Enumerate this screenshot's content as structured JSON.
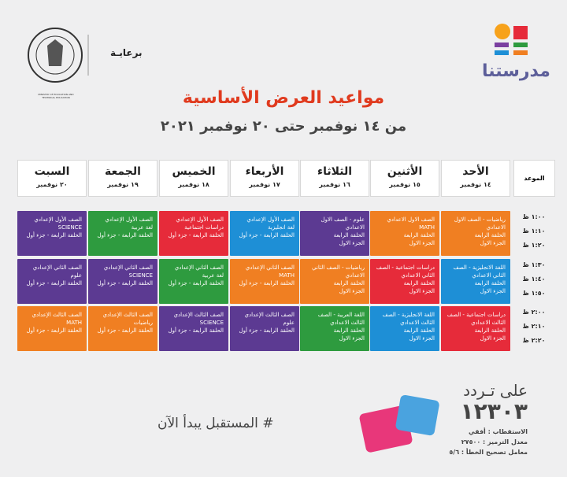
{
  "header": {
    "sponsor": "برعايـة",
    "logo": "مدرستنا",
    "ministry": "MINISTRY OF EDUCATION AND TECHNICAL EDUCATION"
  },
  "title": "مواعيد العرض الأساسية",
  "subtitle": "من ١٤ نوفمبر حتى ٢٠ نوفمبر ٢٠٢١",
  "table": {
    "time_header": "الموعد",
    "days": [
      {
        "name": "الأحد",
        "date": "١٤ نوفمبر"
      },
      {
        "name": "الأثنين",
        "date": "١٥ نوفمبر"
      },
      {
        "name": "الثلاثاء",
        "date": "١٦ نوفمبر"
      },
      {
        "name": "الأربعاء",
        "date": "١٧ نوفمبر"
      },
      {
        "name": "الخميس",
        "date": "١٨ نوفمبر"
      },
      {
        "name": "الجمعة",
        "date": "١٩ نوفمبر"
      },
      {
        "name": "السبت",
        "date": "٢٠ نوفمبر"
      }
    ],
    "times": [
      "١:٠٠ ظ",
      "١:١٠ ظ",
      "١:٢٠ ظ",
      "١:٣٠ ظ",
      "١:٤٠ ظ",
      "١:٥٠ ظ",
      "٢:٠٠ ظ",
      "٢:١٠ ظ",
      "٢:٢٠ ظ"
    ],
    "blocks": [
      [
        {
          "color": "#f07f22",
          "lines": [
            "رياضيات - الصف الاول",
            "الاعدادي",
            "الحلقة الرابعة",
            "الجزء الاول"
          ]
        },
        {
          "color": "#f07f22",
          "lines": [
            "الصف الاول الاعدادي",
            "MATH",
            "الحلقة الرابعة",
            "الجزء الاول"
          ]
        },
        {
          "color": "#5c3a92",
          "lines": [
            "علوم - الصف الاول",
            "الاعدادي",
            "الحلقة الرابعة",
            "الجزء الاول"
          ]
        },
        {
          "color": "#1e8fd6",
          "lines": [
            "الصف الأول الإعدادي",
            "لغة انجليزية",
            "الحلقة الرابعة - جزء أول"
          ]
        },
        {
          "color": "#e62b3a",
          "lines": [
            "الصف الأول الإعدادي",
            "دراسات اجتماعية",
            "الحلقة الرابعة - جزء أول"
          ]
        },
        {
          "color": "#2e9b3f",
          "lines": [
            "الصف الأول الإعدادي",
            "لغة عربية",
            "الحلقة الرابعة - جزء أول"
          ]
        },
        {
          "color": "#5c3a92",
          "lines": [
            "الصف الأول الإعدادي",
            "SCIENCE",
            "الحلقة الرابعة - جزء أول"
          ]
        }
      ],
      [
        {
          "color": "#1e8fd6",
          "lines": [
            "اللغة الانجليزية - الصف",
            "الثاني الاعدادي",
            "الحلقة الرابعة",
            "الجزء الاول"
          ]
        },
        {
          "color": "#e62b3a",
          "lines": [
            "دراسات اجتماعية - الصف",
            "الثاني الاعدادي",
            "الحلقة الرابعة",
            "الجزء الاول"
          ]
        },
        {
          "color": "#f07f22",
          "lines": [
            "رياضيات - الصف الثاني",
            "الاعدادي",
            "الحلقة الرابعة",
            "الجزء الاول"
          ]
        },
        {
          "color": "#f07f22",
          "lines": [
            "الصف الثاني الإعدادي",
            "MATH",
            "الحلقة الرابعة - جزء أول"
          ]
        },
        {
          "color": "#2e9b3f",
          "lines": [
            "الصف الثاني الإعدادي",
            "لغة عربية",
            "الحلقة الرابعة - جزء أول"
          ]
        },
        {
          "color": "#5c3a92",
          "lines": [
            "الصف الثاني الإعدادي",
            "SCIENCE",
            "الحلقة الرابعة - جزء أول"
          ]
        },
        {
          "color": "#5c3a92",
          "lines": [
            "الصف الثاني الإعدادي",
            "علوم",
            "الحلقة الرابعة - جزء أول"
          ]
        }
      ],
      [
        {
          "color": "#e62b3a",
          "lines": [
            "دراسات اجتماعية - الصف",
            "الثالث الاعدادي",
            "الحلقة الرابعة",
            "الجزء الاول"
          ]
        },
        {
          "color": "#1e8fd6",
          "lines": [
            "اللغة الانجليزية - الصف",
            "الثالث الاعدادي",
            "الحلقة الرابعة",
            "الجزء الاول"
          ]
        },
        {
          "color": "#2e9b3f",
          "lines": [
            "اللغة العربية - الصف",
            "الثالث الاعدادي",
            "الحلقة الرابعة",
            "الجزء الاول"
          ]
        },
        {
          "color": "#5c3a92",
          "lines": [
            "الصف الثالث الإعدادي",
            "علوم",
            "الحلقة الرابعة - جزء أول"
          ]
        },
        {
          "color": "#5c3a92",
          "lines": [
            "الصف الثالث الإعدادي",
            "SCIENCE",
            "الحلقة الرابعة - جزء أول"
          ]
        },
        {
          "color": "#f07f22",
          "lines": [
            "الصف الثالث الإعدادي",
            "رياضيات",
            "الحلقة الرابعة - جزء أول"
          ]
        },
        {
          "color": "#f07f22",
          "lines": [
            "الصف الثالث الإعدادي",
            "MATH",
            "الحلقة الرابعة - جزء أول"
          ]
        }
      ]
    ]
  },
  "footer": {
    "freq_label": "على تـردد",
    "freq": "١٢٣٠٣",
    "lines": [
      "الاستقطاب : أفقي",
      "معدل الترميز : ٢٧٥٠٠",
      "معامل تصحيح الخطأ : ٥/٦"
    ],
    "hashtag": "# المستقبل يبدأ الآن"
  }
}
